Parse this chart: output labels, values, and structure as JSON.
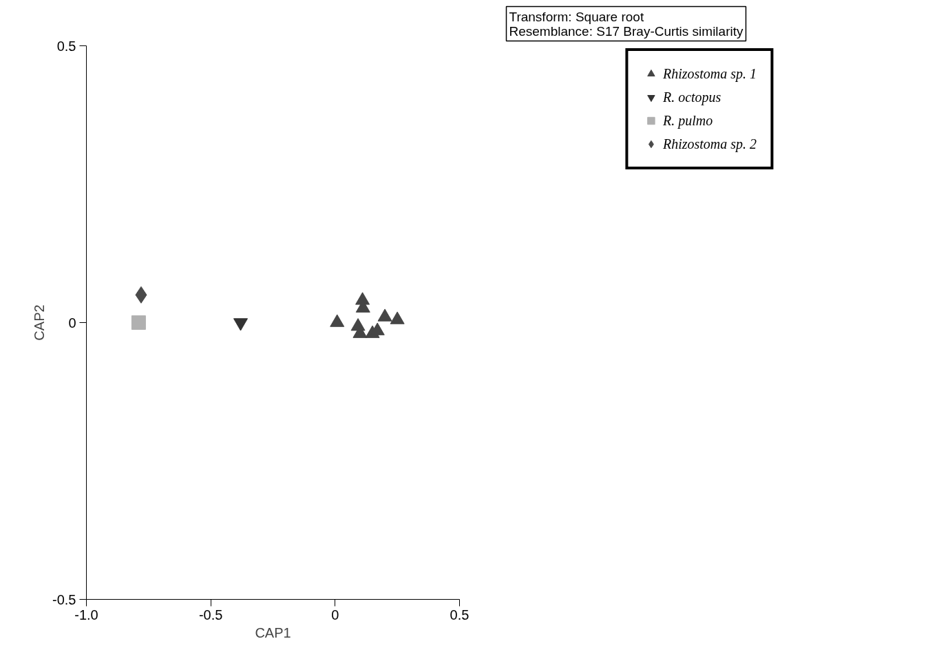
{
  "chart_data": {
    "type": "scatter",
    "xlabel": "CAP1",
    "ylabel": "CAP2",
    "annotations": [
      "Transform: Square root\nResemblance: S17 Bray-Curtis similarity"
    ],
    "xlim": [
      -1.0,
      0.5
    ],
    "xticks": [
      {
        "value": -1.0,
        "label": "-1.0"
      },
      {
        "value": -0.5,
        "label": "-0.5"
      },
      0,
      0.5
    ],
    "ylim": [
      -0.5,
      0.5
    ],
    "yticks": [
      {
        "value": -0.5,
        "label": "-0.5"
      },
      0,
      0.5
    ],
    "grid": false,
    "legend": "top right",
    "series": [
      {
        "name": "Rhizostoma sp. 1",
        "color": "#454545",
        "marker": "triangle",
        "x": [
          0.008,
          0.11,
          0.112,
          0.092,
          0.1,
          0.15,
          0.17,
          0.2,
          0.25
        ],
        "values": [
          0.0,
          0.04,
          0.026,
          -0.007,
          -0.02,
          -0.02,
          -0.015,
          0.01,
          0.005
        ]
      },
      {
        "name": "R. octopus",
        "color": "#333333",
        "marker": "triangle-down",
        "x": [
          -0.38
        ],
        "values": [
          0.0
        ]
      },
      {
        "name": "R. pulmo",
        "color": "#b0b0b0",
        "marker": "square",
        "x": [
          -0.79
        ],
        "values": [
          0.0
        ]
      },
      {
        "name": "Rhizostoma sp. 2",
        "color": "#4a4a4a",
        "marker": "diamond",
        "x": [
          -0.78
        ],
        "values": [
          0.05
        ]
      }
    ]
  }
}
